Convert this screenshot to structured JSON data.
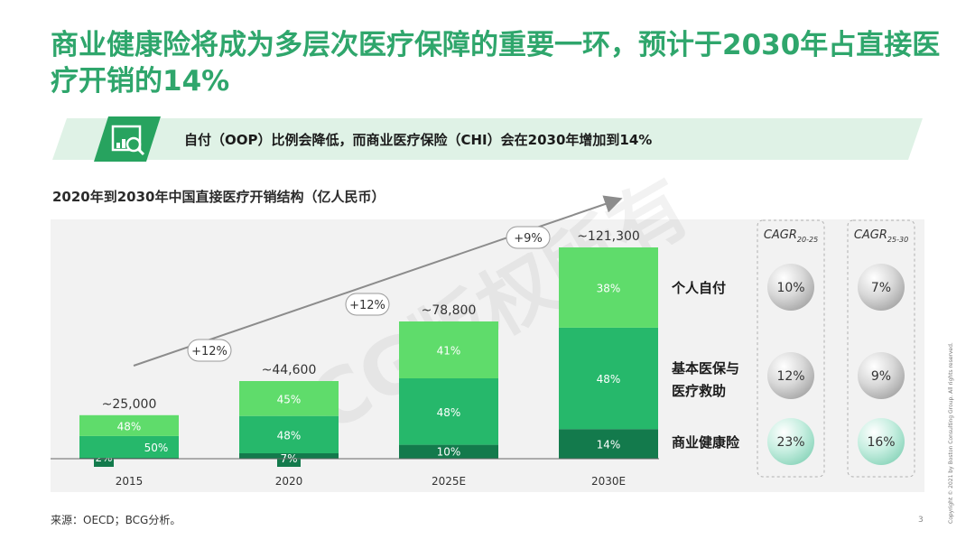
{
  "title": "商业健康险将成为多层次医疗保障的重要一环，预计于2030年占直接医疗开销的14%",
  "banner_text": "自付（OOP）比例会降低，而商业医疗保险（CHI）会在2030年增加到14%",
  "watermark": "BCG版权所有",
  "source": "来源：OECD；BCG分析。",
  "page_number": "3",
  "copyright": "Copyright © 2021 by Boston Consulting Group. All rights reserved.",
  "colors": {
    "title": "#2fa66c",
    "oop": "#5fdc6b",
    "basic": "#26b86b",
    "chi": "#137a4c",
    "cagr_gray": "#cfcfcf",
    "cagr_teal": "#bfe9dc"
  },
  "chart_data": {
    "type": "bar",
    "title": "2020年到2030年中国直接医疗开销结构（亿人民币）",
    "categories": [
      "2015",
      "2020",
      "2025E",
      "2030E"
    ],
    "totals": [
      "~25,000",
      "~44,600",
      "~78,800",
      "~121,300"
    ],
    "total_values": [
      25000,
      44600,
      78800,
      121300
    ],
    "growth_labels": [
      "+12%",
      "+12%",
      "+9%"
    ],
    "series": [
      {
        "name": "个人自付",
        "values": [
          48,
          45,
          41,
          38
        ],
        "labels": [
          "48%",
          "45%",
          "41%",
          "38%"
        ]
      },
      {
        "name": "基本医保与医疗救助",
        "values": [
          50,
          48,
          48,
          48
        ],
        "labels": [
          "50%",
          "48%",
          "48%",
          "48%"
        ]
      },
      {
        "name": "商业健康险",
        "values": [
          2,
          7,
          10,
          14
        ],
        "labels": [
          "2%",
          "7%",
          "10%",
          "14%"
        ]
      }
    ],
    "cagr": {
      "headers": [
        {
          "base": "CAGR",
          "sub": "20-25"
        },
        {
          "base": "CAGR",
          "sub": "25-30"
        }
      ],
      "rows": [
        {
          "label": "个人自付",
          "values": [
            "10%",
            "7%"
          ]
        },
        {
          "label": "基本医保与医疗救助",
          "values": [
            "12%",
            "9%"
          ]
        },
        {
          "label": "商业健康险",
          "values": [
            "23%",
            "16%"
          ]
        }
      ]
    }
  }
}
